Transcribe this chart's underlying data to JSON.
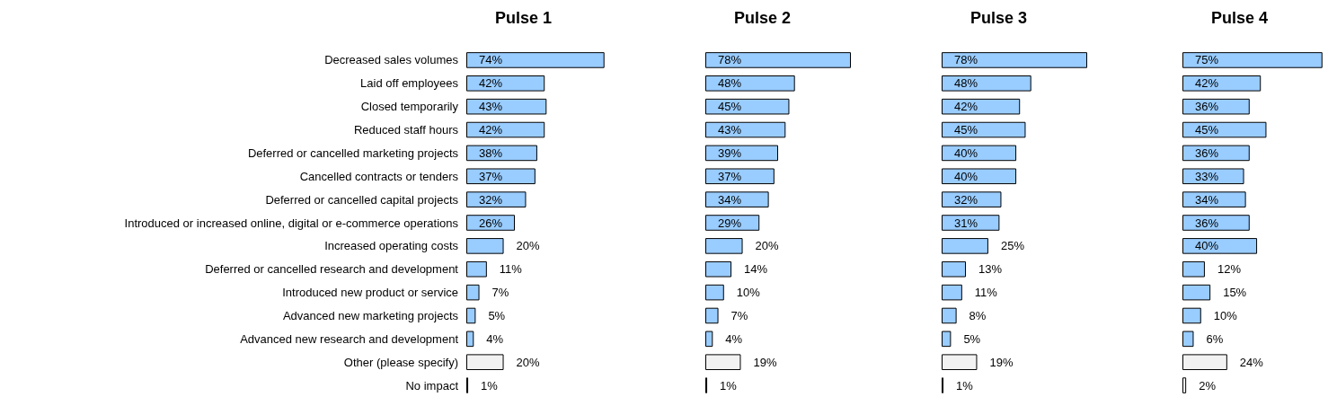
{
  "chart_data": [
    {
      "type": "bar",
      "orientation": "horizontal",
      "title": "Pulse 1",
      "tick_labels": "y",
      "categories": [
        "Decreased sales volumes",
        "Laid off employees",
        "Closed temporarily",
        "Reduced staff hours",
        "Deferred or cancelled marketing projects",
        "Cancelled contracts or tenders",
        "Deferred or cancelled capital projects",
        "Introduced or increased online, digital or e-commerce operations",
        "Increased operating costs",
        "Deferred or cancelled research and development",
        "Introduced new product or service",
        "Advanced new marketing projects",
        "Advanced new research and development",
        "Other (please specify)",
        "No impact"
      ],
      "values": [
        74,
        42,
        43,
        42,
        38,
        37,
        32,
        26,
        20,
        11,
        7,
        5,
        4,
        20,
        1
      ],
      "value_labels": [
        "74%",
        "42%",
        "43%",
        "42%",
        "38%",
        "37%",
        "32%",
        "26%",
        "20%",
        "11%",
        "7%",
        "5%",
        "4%",
        "20%",
        "1%"
      ],
      "colors": [
        "#99ccff",
        "#99ccff",
        "#99ccff",
        "#99ccff",
        "#99ccff",
        "#99ccff",
        "#99ccff",
        "#99ccff",
        "#99ccff",
        "#99ccff",
        "#99ccff",
        "#99ccff",
        "#99ccff",
        "#f2f2f2",
        "#f2f2f2"
      ]
    },
    {
      "type": "bar",
      "orientation": "horizontal",
      "title": "Pulse 2",
      "tick_labels": false,
      "categories": [
        null,
        null,
        null,
        null,
        null,
        null,
        null,
        null,
        null,
        null,
        null,
        null,
        null,
        null,
        null
      ],
      "values": [
        78,
        48,
        45,
        43,
        39,
        37,
        34,
        29,
        20,
        14,
        10,
        7,
        4,
        19,
        1
      ],
      "value_labels": [
        "78%",
        "48%",
        "45%",
        "43%",
        "39%",
        "37%",
        "34%",
        "29%",
        "20%",
        "14%",
        "10%",
        "7%",
        "4%",
        "19%",
        "1%"
      ],
      "colors": [
        "#99ccff",
        "#99ccff",
        "#99ccff",
        "#99ccff",
        "#99ccff",
        "#99ccff",
        "#99ccff",
        "#99ccff",
        "#99ccff",
        "#99ccff",
        "#99ccff",
        "#99ccff",
        "#99ccff",
        "#f2f2f2",
        "#f2f2f2"
      ]
    },
    {
      "type": "bar",
      "orientation": "horizontal",
      "title": "Pulse 3",
      "tick_labels": false,
      "categories": [
        null,
        null,
        null,
        null,
        null,
        null,
        null,
        null,
        null,
        null,
        null,
        null,
        null,
        null,
        null
      ],
      "values": [
        78,
        48,
        42,
        45,
        40,
        40,
        32,
        31,
        25,
        13,
        11,
        8,
        5,
        19,
        1
      ],
      "value_labels": [
        "78%",
        "48%",
        "42%",
        "45%",
        "40%",
        "40%",
        "32%",
        "31%",
        "25%",
        "13%",
        "11%",
        "8%",
        "5%",
        "19%",
        "1%"
      ],
      "colors": [
        "#99ccff",
        "#99ccff",
        "#99ccff",
        "#99ccff",
        "#99ccff",
        "#99ccff",
        "#99ccff",
        "#99ccff",
        "#99ccff",
        "#99ccff",
        "#99ccff",
        "#99ccff",
        "#99ccff",
        "#f2f2f2",
        "#f2f2f2"
      ]
    },
    {
      "type": "bar",
      "orientation": "horizontal",
      "title": "Pulse 4",
      "tick_labels": false,
      "categories": [
        null,
        null,
        null,
        null,
        null,
        null,
        null,
        null,
        null,
        null,
        null,
        null,
        null,
        null,
        null
      ],
      "values": [
        75,
        42,
        36,
        45,
        36,
        33,
        34,
        36,
        40,
        12,
        15,
        10,
        6,
        24,
        2
      ],
      "value_labels": [
        "75%",
        "42%",
        "36%",
        "45%",
        "36%",
        "33%",
        "34%",
        "36%",
        "40%",
        "12%",
        "15%",
        "10%",
        "6%",
        "24%",
        "2%"
      ],
      "colors": [
        "#99ccff",
        "#99ccff",
        "#99ccff",
        "#99ccff",
        "#99ccff",
        "#99ccff",
        "#99ccff",
        "#99ccff",
        "#99ccff",
        "#99ccff",
        "#99ccff",
        "#99ccff",
        "#99ccff",
        "#f2f2f2",
        "#f2f2f2"
      ]
    }
  ]
}
